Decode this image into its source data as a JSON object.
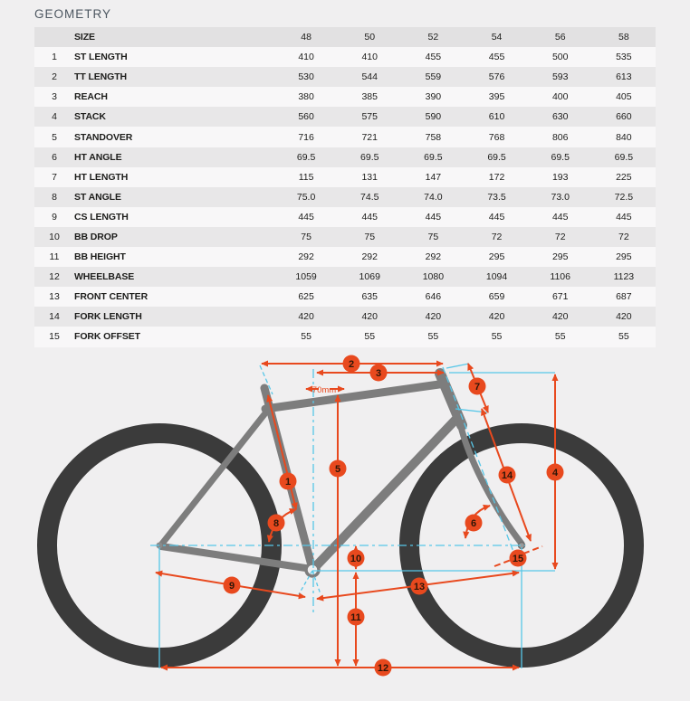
{
  "page": {
    "title": "GEOMETRY"
  },
  "table": {
    "size_label": "SIZE",
    "sizes": [
      "48",
      "50",
      "52",
      "54",
      "56",
      "58"
    ],
    "rows": [
      {
        "num": "1",
        "label": "ST LENGTH",
        "values": [
          "410",
          "410",
          "455",
          "455",
          "500",
          "535"
        ]
      },
      {
        "num": "2",
        "label": "TT LENGTH",
        "values": [
          "530",
          "544",
          "559",
          "576",
          "593",
          "613"
        ]
      },
      {
        "num": "3",
        "label": "REACH",
        "values": [
          "380",
          "385",
          "390",
          "395",
          "400",
          "405"
        ]
      },
      {
        "num": "4",
        "label": "STACK",
        "values": [
          "560",
          "575",
          "590",
          "610",
          "630",
          "660"
        ]
      },
      {
        "num": "5",
        "label": "STANDOVER",
        "values": [
          "716",
          "721",
          "758",
          "768",
          "806",
          "840"
        ]
      },
      {
        "num": "6",
        "label": "HT ANGLE",
        "values": [
          "69.5",
          "69.5",
          "69.5",
          "69.5",
          "69.5",
          "69.5"
        ]
      },
      {
        "num": "7",
        "label": "HT LENGTH",
        "values": [
          "115",
          "131",
          "147",
          "172",
          "193",
          "225"
        ]
      },
      {
        "num": "8",
        "label": "ST ANGLE",
        "values": [
          "75.0",
          "74.5",
          "74.0",
          "73.5",
          "73.0",
          "72.5"
        ]
      },
      {
        "num": "9",
        "label": "CS LENGTH",
        "values": [
          "445",
          "445",
          "445",
          "445",
          "445",
          "445"
        ]
      },
      {
        "num": "10",
        "label": "BB DROP",
        "values": [
          "75",
          "75",
          "75",
          "72",
          "72",
          "72"
        ]
      },
      {
        "num": "11",
        "label": "BB HEIGHT",
        "values": [
          "292",
          "292",
          "292",
          "295",
          "295",
          "295"
        ]
      },
      {
        "num": "12",
        "label": "WHEELBASE",
        "values": [
          "1059",
          "1069",
          "1080",
          "1094",
          "1106",
          "1123"
        ]
      },
      {
        "num": "13",
        "label": "FRONT CENTER",
        "values": [
          "625",
          "635",
          "646",
          "659",
          "671",
          "687"
        ]
      },
      {
        "num": "14",
        "label": "FORK LENGTH",
        "values": [
          "420",
          "420",
          "420",
          "420",
          "420",
          "420"
        ]
      },
      {
        "num": "15",
        "label": "FORK OFFSET",
        "values": [
          "55",
          "55",
          "55",
          "55",
          "55",
          "55"
        ]
      }
    ]
  },
  "diagram": {
    "annotation_70mm": "70mm",
    "markers": [
      "1",
      "2",
      "3",
      "4",
      "5",
      "6",
      "7",
      "8",
      "9",
      "10",
      "11",
      "12",
      "13",
      "14",
      "15"
    ],
    "colors": {
      "accent_orange": "#e8491e",
      "guide_cyan": "#57c7e8",
      "frame_gray": "#7d7d7d",
      "tire_dark": "#3b3b3b",
      "background": "#f0eff0"
    }
  }
}
